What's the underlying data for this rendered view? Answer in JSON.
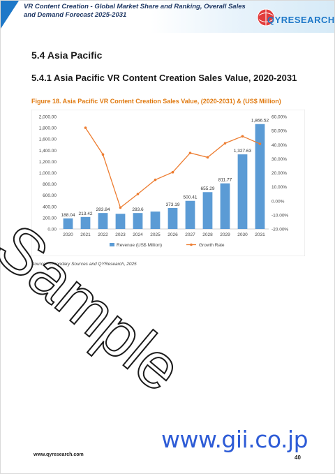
{
  "header": {
    "title": "VR Content Creation - Global Market Share and Ranking, Overall Sales and Demand Forecast 2025-2031",
    "logo_text": "QYRESEARCH"
  },
  "section": {
    "heading": "5.4  Asia Pacific"
  },
  "subsection": {
    "heading": "5.4.1  Asia Pacific VR Content Creation Sales Value, 2020-2031"
  },
  "figure": {
    "caption": "Figure 18.  Asia Pacific VR Content Creation Sales Value, (2020-2031) & (US$ Million)"
  },
  "chart_data": {
    "type": "bar",
    "categories": [
      "2020",
      "2021",
      "2022",
      "2023",
      "2024",
      "2025",
      "2026",
      "2027",
      "2028",
      "2029",
      "2030",
      "2031"
    ],
    "series": [
      {
        "name": "Revenue (US$ Million)",
        "type": "bar",
        "color": "#5b9bd5",
        "values": [
          188.04,
          213.42,
          283.84,
          270.0,
          283.6,
          310.0,
          373.19,
          500.41,
          655.29,
          811.77,
          1327.63,
          1866.52
        ],
        "labels": [
          "188.04",
          "213.42",
          "283.84",
          "",
          "283.6",
          "",
          "373.19",
          "500.41",
          "655.29",
          "811.77",
          "1,327.63",
          "1,866.52"
        ]
      },
      {
        "name": "Growth Rate",
        "type": "line",
        "color": "#ed7d31",
        "axis": "right",
        "values": [
          null,
          52.0,
          33.0,
          -4.8,
          4.9,
          15.0,
          20.4,
          34.1,
          31.0,
          41.0,
          46.0,
          40.6
        ]
      }
    ],
    "left_axis": {
      "ylim": [
        0,
        2000
      ],
      "ticks": [
        "0.00",
        "200.00",
        "400.00",
        "600.00",
        "800.00",
        "1,000.00",
        "1,200.00",
        "1,400.00",
        "1,600.00",
        "1,800.00",
        "2,000.00"
      ]
    },
    "right_axis": {
      "ylim": [
        -20,
        60
      ],
      "ticks": [
        "-20.00%",
        "-10.00%",
        "0.00%",
        "10.00%",
        "20.00%",
        "30.00%",
        "40.00%",
        "50.00%",
        "60.00%"
      ]
    },
    "legend_position": "bottom",
    "legend": [
      "Revenue (US$ Million)",
      "Growth Rate"
    ]
  },
  "source": "Source: Secondary Sources and QYResearch, 2025",
  "footer": {
    "url": "www.qyresearch.com",
    "page": "40"
  },
  "watermark": "Sample",
  "gii_mark": "www.gii.co.jp"
}
